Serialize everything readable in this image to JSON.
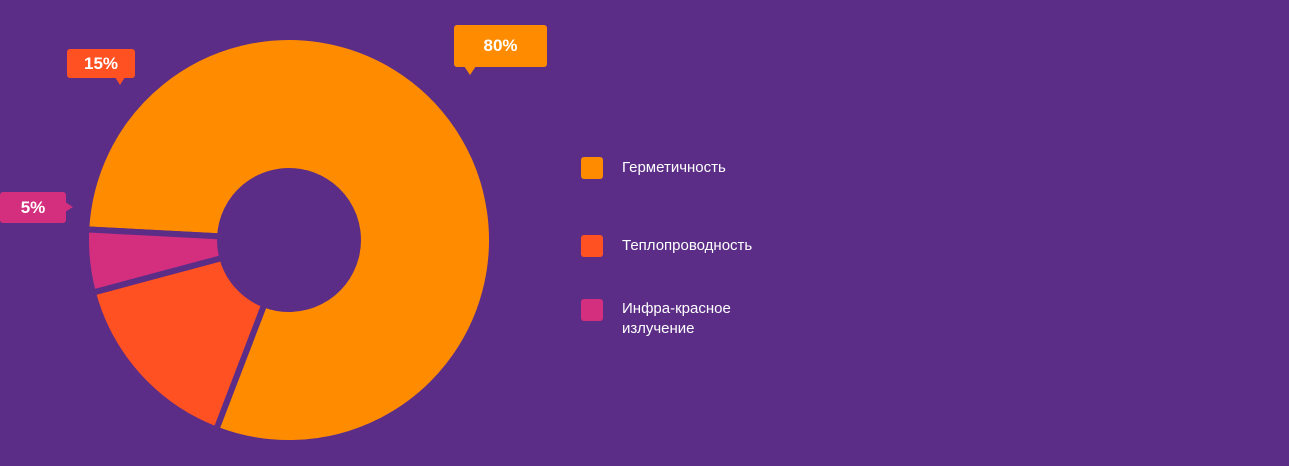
{
  "colors": {
    "background": "#5b2d86",
    "series": [
      "#ff8c00",
      "#ff5122",
      "#d42f7e"
    ]
  },
  "chart_data": {
    "type": "pie",
    "donut": true,
    "categories": [
      "Герметичность",
      "Теплопроводность",
      "Инфра-красное излучение"
    ],
    "values": [
      80,
      15,
      5
    ],
    "data_labels": [
      "80%",
      "15%",
      "5%"
    ],
    "legend_position": "right",
    "legend_lines": [
      [
        "Герметичность"
      ],
      [
        "Теплопроводность"
      ],
      [
        "Инфра-красное",
        "излучение"
      ]
    ]
  }
}
